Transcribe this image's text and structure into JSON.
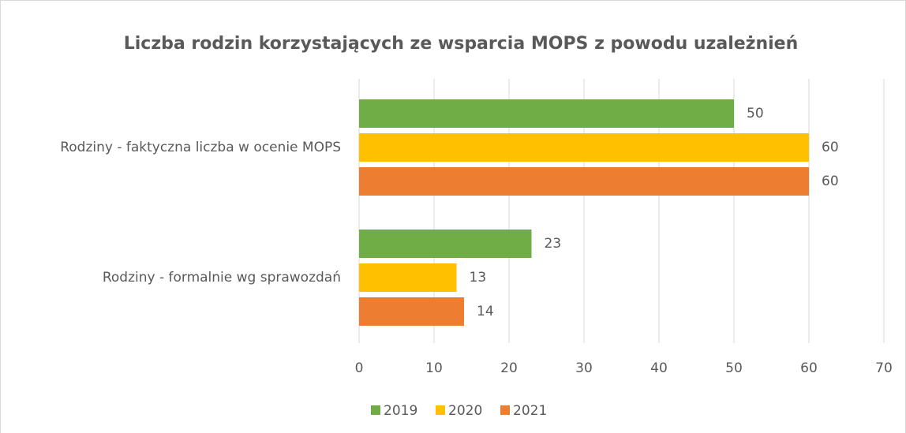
{
  "chart_data": {
    "type": "bar",
    "orientation": "horizontal",
    "title": "Liczba rodzin korzystających ze wsparcia MOPS z powodu uzależnień",
    "categories": [
      "Rodziny - faktyczna liczba w ocenie MOPS",
      "Rodziny - formalnie wg sprawozdań"
    ],
    "series": [
      {
        "name": "2019",
        "color": "#70ad47",
        "values": [
          50,
          23
        ]
      },
      {
        "name": "2020",
        "color": "#ffc000",
        "values": [
          60,
          13
        ]
      },
      {
        "name": "2021",
        "color": "#ed7d31",
        "values": [
          60,
          14
        ]
      }
    ],
    "xlim": [
      0,
      70
    ],
    "xticks": [
      0,
      10,
      20,
      30,
      40,
      50,
      60,
      70
    ],
    "grid": true,
    "legend": "bottom"
  }
}
